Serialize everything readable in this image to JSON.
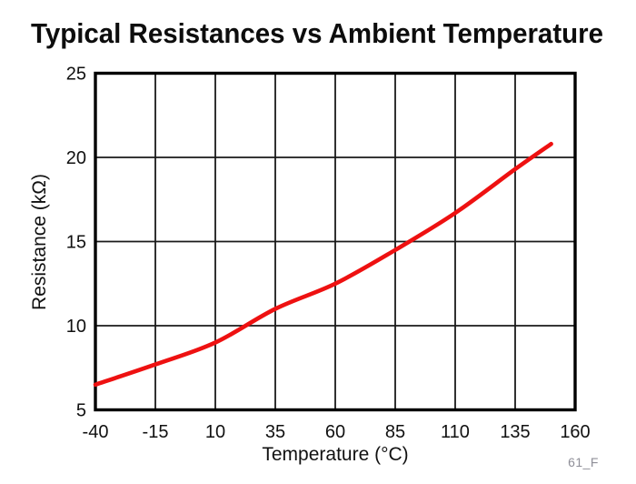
{
  "chart_data": {
    "type": "line",
    "title": "Typical Resistances vs Ambient Temperature",
    "xlabel": "Temperature (°C)",
    "ylabel": "Resistance (kΩ)",
    "xlim": [
      -40,
      160
    ],
    "ylim": [
      5,
      25
    ],
    "x_ticks": [
      -40,
      -15,
      10,
      35,
      60,
      85,
      110,
      135,
      160
    ],
    "y_ticks": [
      5,
      10,
      15,
      20,
      25
    ],
    "grid": true,
    "legend": false,
    "line_color": "#ee1111",
    "x": [
      -40,
      -15,
      10,
      35,
      60,
      85,
      110,
      135,
      150
    ],
    "y": [
      6.5,
      7.7,
      9.0,
      11.0,
      12.5,
      14.5,
      16.7,
      19.3,
      20.8
    ]
  },
  "watermark": "61_F"
}
